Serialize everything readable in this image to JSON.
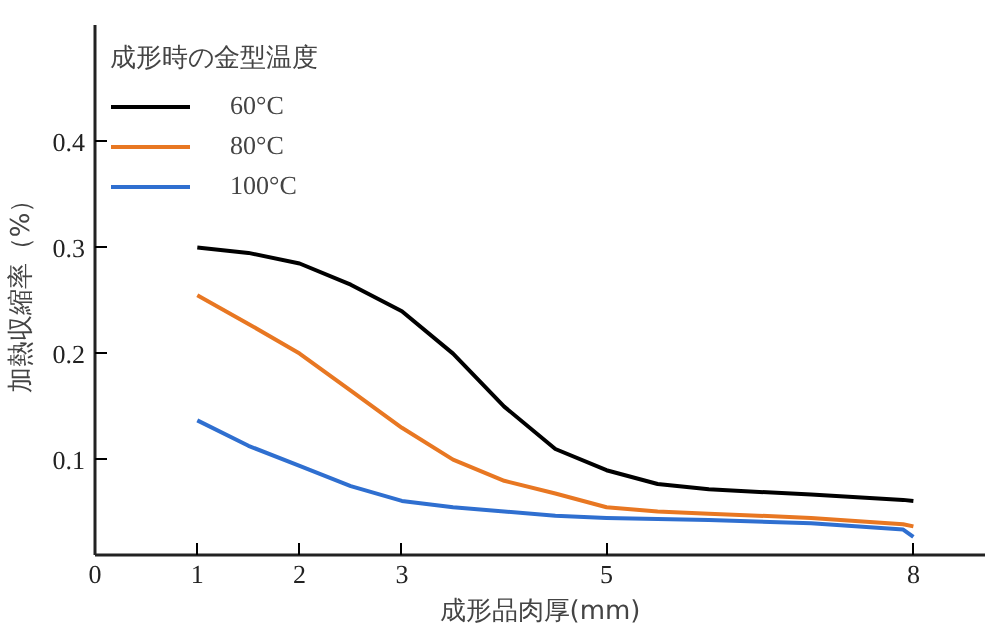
{
  "chart_data": {
    "type": "line",
    "xlabel": "成形品肉厚(mm)",
    "ylabel": "加熱収縮率（%）",
    "legend_title": "成形時の金型温度",
    "legend": "top left",
    "grid": false,
    "line_style": "solid",
    "marker": "none",
    "xlim": [
      0,
      8.7
    ],
    "xticks": [
      0,
      1,
      2,
      3,
      5,
      8
    ],
    "ylim": [
      0.01,
      0.51
    ],
    "yticks": [
      0.1,
      0.2,
      0.3,
      0.4
    ],
    "x": [
      1,
      1.5,
      2,
      2.5,
      3,
      3.5,
      4,
      4.5,
      5,
      5.5,
      6,
      7,
      7.9,
      8
    ],
    "series": [
      {
        "name": "60°C",
        "color": "#000000",
        "values": [
          0.3,
          0.295,
          0.285,
          0.265,
          0.24,
          0.2,
          0.15,
          0.11,
          0.09,
          0.077,
          0.072,
          0.067,
          0.062,
          0.061
        ]
      },
      {
        "name": "80°C",
        "color": "#e87722",
        "values": [
          0.255,
          0.228,
          0.2,
          0.165,
          0.13,
          0.1,
          0.08,
          0.068,
          0.055,
          0.051,
          0.049,
          0.045,
          0.039,
          0.037
        ]
      },
      {
        "name": "100°C",
        "color": "#2f6fd0",
        "values": [
          0.137,
          0.113,
          0.094,
          0.075,
          0.061,
          0.055,
          0.051,
          0.047,
          0.045,
          0.044,
          0.043,
          0.04,
          0.034,
          0.027
        ]
      }
    ]
  }
}
